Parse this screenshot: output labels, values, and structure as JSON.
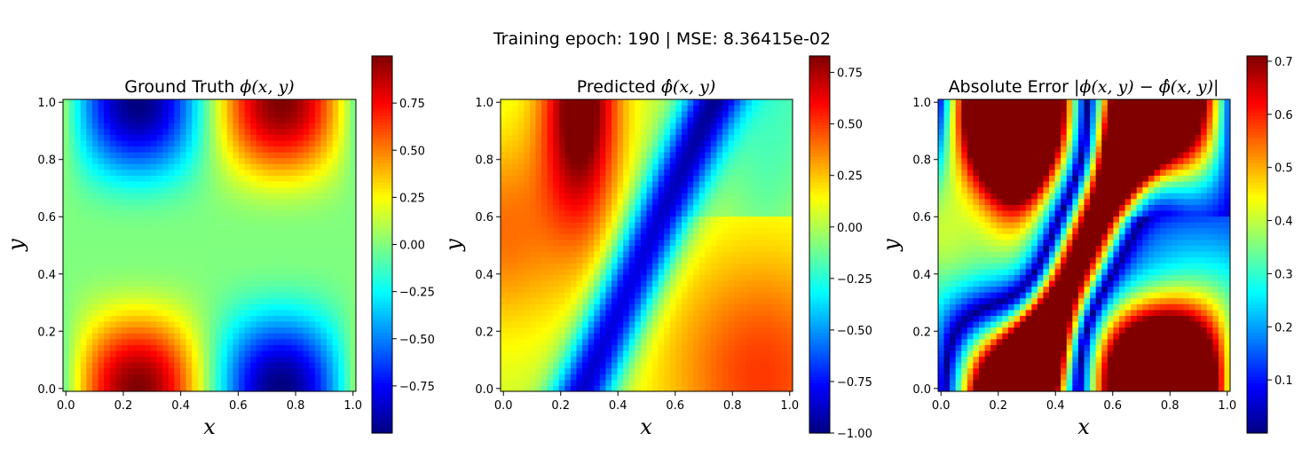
{
  "suptitle": "Training epoch: 190 | MSE: 8.36415e-02",
  "chart_data": [
    {
      "type": "heatmap",
      "title_prefix": "Ground Truth ",
      "title_math": "ϕ(x, y)",
      "xlabel": "x",
      "ylabel": "y",
      "xlim": [
        -0.01,
        1.01
      ],
      "ylim": [
        -0.01,
        1.01
      ],
      "xticks": [
        "0.0",
        "0.2",
        "0.4",
        "0.6",
        "0.8",
        "1.0"
      ],
      "yticks": [
        "0.0",
        "0.2",
        "0.4",
        "0.6",
        "0.8",
        "1.0"
      ],
      "field": "sin(2πx)·sin(2πy)^3 style ground truth",
      "grid_resolution": 50,
      "colormap": "jet",
      "colorbar_range": [
        -1.0,
        1.0
      ],
      "colorbar_ticks": [
        "0.75",
        "0.50",
        "0.25",
        "0.00",
        "−0.25",
        "−0.50",
        "−0.75"
      ],
      "colorbar_tick_values": [
        0.75,
        0.5,
        0.25,
        0.0,
        -0.25,
        -0.5,
        -0.75
      ]
    },
    {
      "type": "heatmap",
      "title_prefix": "Predicted ",
      "title_math": "ϕ̂(x, y)",
      "xlabel": "x",
      "ylabel": "y",
      "xlim": [
        -0.01,
        1.01
      ],
      "ylim": [
        -0.01,
        1.01
      ],
      "xticks": [
        "0.0",
        "0.2",
        "0.4",
        "0.6",
        "0.8",
        "1.0"
      ],
      "yticks": [
        "0.0",
        "0.2",
        "0.4",
        "0.6",
        "0.8",
        "1.0"
      ],
      "field": "network prediction",
      "grid_resolution": 50,
      "colormap": "jet",
      "colorbar_range": [
        -1.0,
        0.83
      ],
      "colorbar_ticks": [
        "0.75",
        "0.50",
        "0.25",
        "0.00",
        "−0.25",
        "−0.50",
        "−0.75",
        "−1.00"
      ],
      "colorbar_tick_values": [
        0.75,
        0.5,
        0.25,
        0.0,
        -0.25,
        -0.5,
        -0.75,
        -1.0
      ]
    },
    {
      "type": "heatmap",
      "title_prefix": "Absolute Error ",
      "title_math": "|ϕ(x, y) − ϕ̂(x, y)|",
      "xlabel": "x",
      "ylabel": "y",
      "xlim": [
        -0.01,
        1.01
      ],
      "ylim": [
        -0.01,
        1.01
      ],
      "xticks": [
        "0.0",
        "0.2",
        "0.4",
        "0.6",
        "0.8",
        "1.0"
      ],
      "yticks": [
        "0.0",
        "0.2",
        "0.4",
        "0.6",
        "0.8",
        "1.0"
      ],
      "field": "absolute difference",
      "grid_resolution": 50,
      "colormap": "jet",
      "colorbar_range": [
        0.0,
        0.71
      ],
      "colorbar_ticks": [
        "0.7",
        "0.6",
        "0.5",
        "0.4",
        "0.3",
        "0.2",
        "0.1"
      ],
      "colorbar_tick_values": [
        0.7,
        0.6,
        0.5,
        0.4,
        0.3,
        0.2,
        0.1
      ]
    }
  ]
}
